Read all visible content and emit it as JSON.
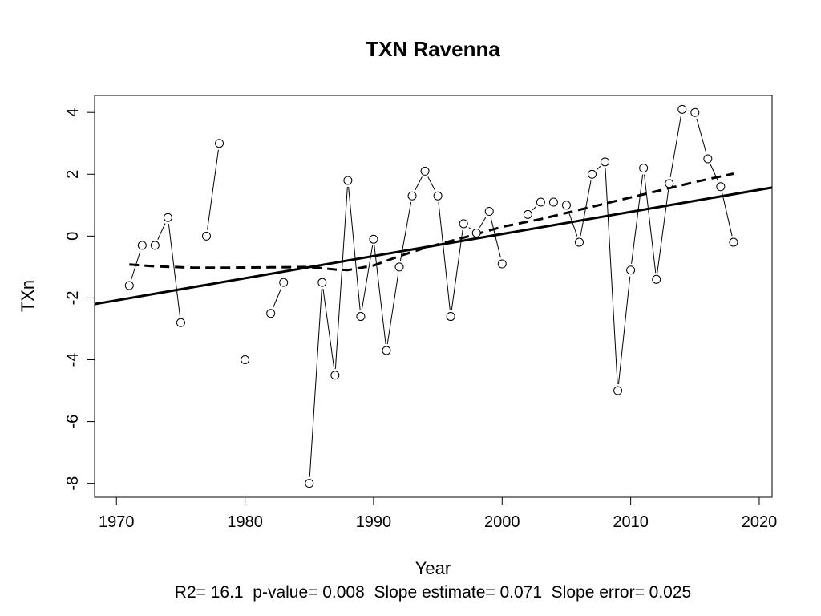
{
  "chart_data": {
    "type": "scatter",
    "title": "TXN   Ravenna",
    "xlabel": "Year",
    "ylabel": "TXn",
    "xlim": [
      1968.3,
      2021
    ],
    "ylim": [
      -8.45,
      4.55
    ],
    "x_ticks": [
      1970,
      1980,
      1990,
      2000,
      2010,
      2020
    ],
    "y_ticks": [
      -8,
      -6,
      -4,
      -2,
      0,
      2,
      4
    ],
    "x_tick_labels": [
      "1970",
      "1980",
      "1990",
      "2000",
      "2010",
      "2020"
    ],
    "y_tick_labels": [
      "-8",
      "-6",
      "-4",
      "-2",
      "0",
      "2",
      "4"
    ],
    "grid": false,
    "series": [
      {
        "name": "TXn",
        "style": "points-connected",
        "x": [
          1971,
          1972,
          1973,
          1974,
          1975,
          1977,
          1978,
          1980,
          1982,
          1983,
          1985,
          1986,
          1987,
          1988,
          1989,
          1990,
          1991,
          1992,
          1993,
          1994,
          1995,
          1996,
          1997,
          1998,
          1999,
          2000,
          2002,
          2003,
          2004,
          2005,
          2006,
          2007,
          2008,
          2009,
          2010,
          2011,
          2012,
          2013,
          2014,
          2015,
          2016,
          2017,
          2018
        ],
        "values": [
          -1.6,
          -0.3,
          -0.3,
          0.6,
          -2.8,
          0.0,
          3.0,
          -4.0,
          -2.5,
          -1.5,
          -8.0,
          -1.5,
          -4.5,
          1.8,
          -2.6,
          -0.1,
          -3.7,
          -1.0,
          1.3,
          2.1,
          1.3,
          -2.6,
          0.4,
          0.1,
          0.8,
          -0.9,
          0.7,
          1.1,
          1.1,
          1.0,
          -0.2,
          2.0,
          2.4,
          -5.0,
          -1.1,
          2.2,
          -1.4,
          1.7,
          4.1,
          4.0,
          2.5,
          1.6,
          -0.2
        ]
      },
      {
        "name": "Linear trend",
        "style": "solid",
        "x": [
          1968.3,
          2021
        ],
        "values": [
          -2.2,
          1.57
        ]
      },
      {
        "name": "Smoothed trend",
        "style": "dashed",
        "x": [
          1971,
          1973,
          1976,
          1979,
          1982,
          1985,
          1987,
          1988,
          1990,
          1992,
          1994,
          1997,
          2000,
          2003,
          2006,
          2009,
          2012,
          2015,
          2018
        ],
        "values": [
          -0.92,
          -0.98,
          -1.02,
          -1.02,
          -1.01,
          -1.0,
          -1.08,
          -1.1,
          -0.95,
          -0.65,
          -0.38,
          -0.05,
          0.3,
          0.55,
          0.85,
          1.15,
          1.45,
          1.75,
          2.02
        ]
      }
    ],
    "stats_text": "R2= 16.1  p-value= 0.008  Slope estimate= 0.071  Slope error= 0.025"
  }
}
